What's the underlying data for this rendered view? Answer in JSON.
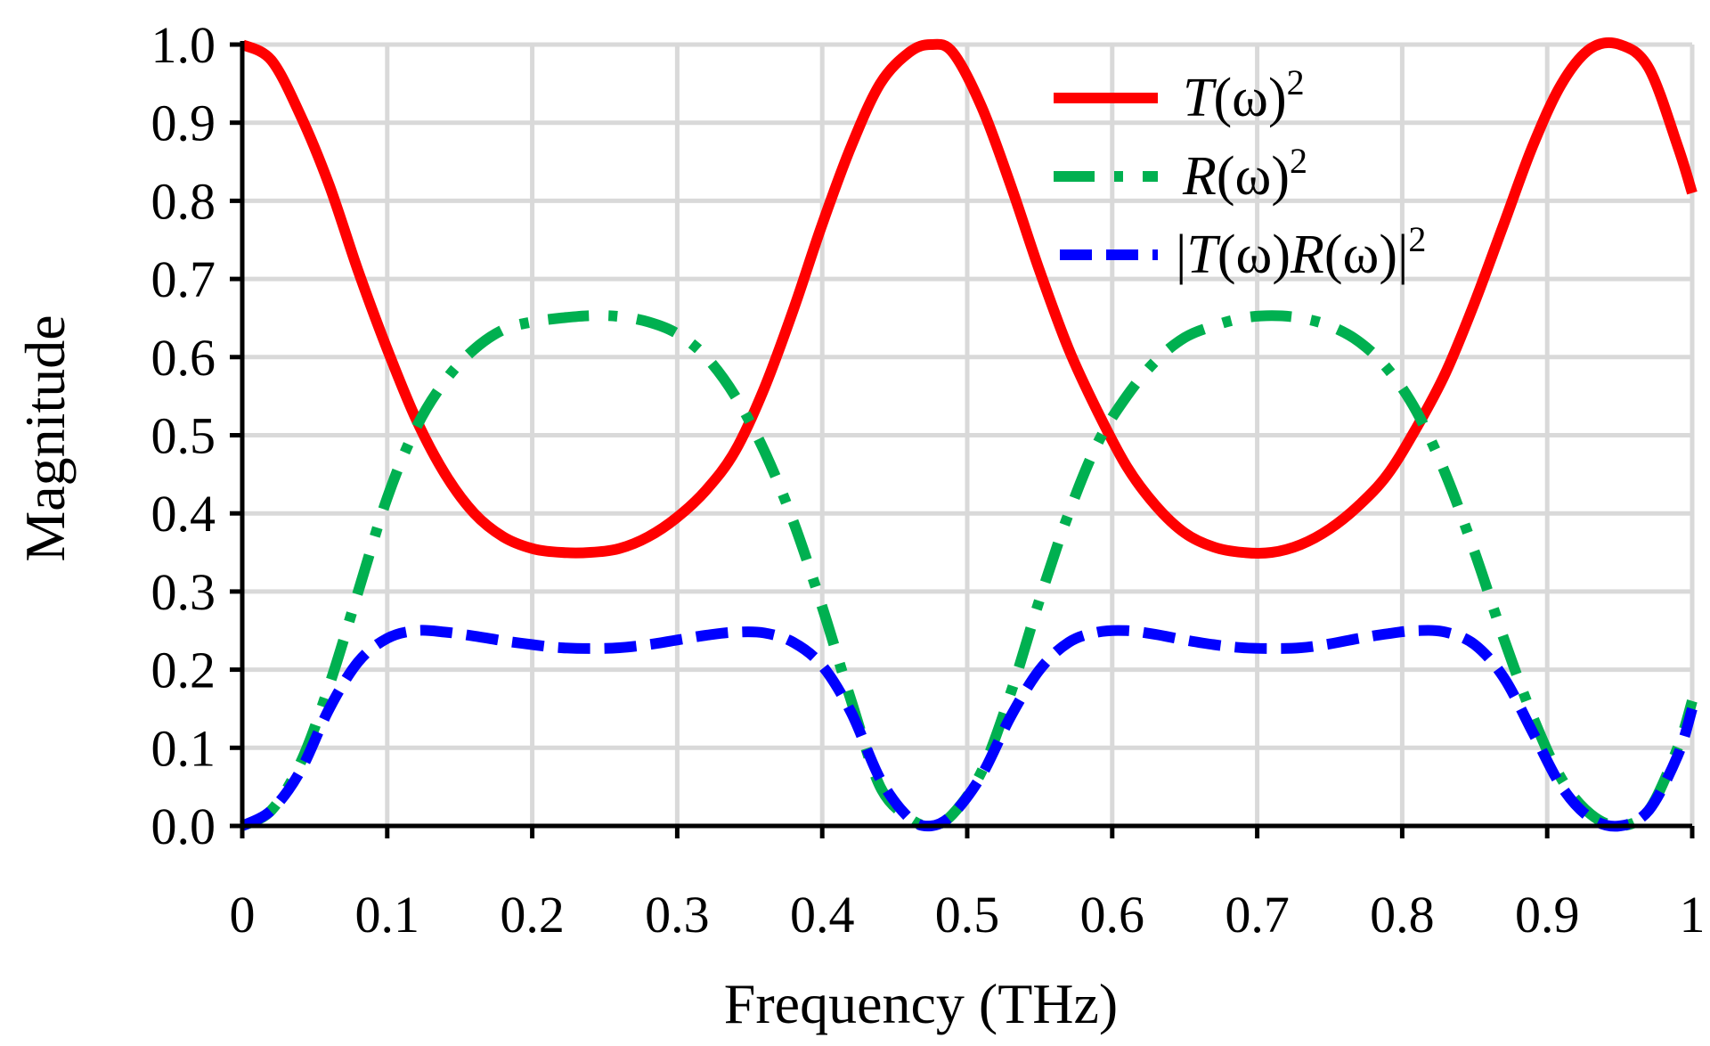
{
  "chart_data": {
    "type": "line",
    "title": "",
    "xlabel": "Frequency (THz)",
    "ylabel": "Magnitude",
    "xlim": [
      0,
      1
    ],
    "ylim": [
      0,
      1
    ],
    "grid": true,
    "legend_position": "top-right",
    "x_ticks": [
      "0",
      "0.1",
      "0.2",
      "0.3",
      "0.4",
      "0.5",
      "0.6",
      "0.7",
      "0.8",
      "0.9",
      "1"
    ],
    "y_ticks": [
      "0.0",
      "0.1",
      "0.2",
      "0.3",
      "0.4",
      "0.5",
      "0.6",
      "0.7",
      "0.8",
      "0.9",
      "1.0"
    ],
    "series": [
      {
        "name": "T(ω)²",
        "legend": {
          "base": "T",
          "arg": "(ω)",
          "sup": "2"
        },
        "color": "#ff0000",
        "style": "solid",
        "x": [
          0,
          0.02,
          0.04,
          0.06,
          0.08,
          0.1,
          0.12,
          0.14,
          0.16,
          0.18,
          0.2,
          0.22,
          0.24,
          0.26,
          0.28,
          0.3,
          0.32,
          0.34,
          0.36,
          0.38,
          0.4,
          0.42,
          0.44,
          0.46,
          0.475,
          0.49,
          0.51,
          0.53,
          0.55,
          0.57,
          0.59,
          0.61,
          0.63,
          0.65,
          0.67,
          0.69,
          0.71,
          0.73,
          0.75,
          0.77,
          0.79,
          0.81,
          0.83,
          0.85,
          0.87,
          0.89,
          0.91,
          0.93,
          0.95,
          0.97,
          0.99,
          1.0
        ],
        "values": [
          1.0,
          0.98,
          0.91,
          0.82,
          0.71,
          0.61,
          0.52,
          0.45,
          0.4,
          0.37,
          0.355,
          0.35,
          0.35,
          0.355,
          0.37,
          0.395,
          0.43,
          0.48,
          0.56,
          0.66,
          0.77,
          0.87,
          0.95,
          0.99,
          1.0,
          0.99,
          0.92,
          0.82,
          0.71,
          0.61,
          0.53,
          0.46,
          0.41,
          0.375,
          0.357,
          0.35,
          0.35,
          0.36,
          0.38,
          0.41,
          0.45,
          0.51,
          0.58,
          0.67,
          0.77,
          0.87,
          0.95,
          0.995,
          1.0,
          0.97,
          0.87,
          0.81
        ]
      },
      {
        "name": "R(ω)²",
        "legend": {
          "base": "R",
          "arg": "(ω)",
          "sup": "2"
        },
        "color": "#00b050",
        "style": "dashdot",
        "x": [
          0,
          0.02,
          0.04,
          0.06,
          0.08,
          0.1,
          0.12,
          0.14,
          0.16,
          0.18,
          0.2,
          0.22,
          0.24,
          0.26,
          0.28,
          0.3,
          0.32,
          0.34,
          0.36,
          0.38,
          0.4,
          0.42,
          0.44,
          0.46,
          0.475,
          0.49,
          0.51,
          0.53,
          0.55,
          0.57,
          0.59,
          0.61,
          0.63,
          0.65,
          0.67,
          0.69,
          0.71,
          0.73,
          0.75,
          0.77,
          0.79,
          0.81,
          0.83,
          0.85,
          0.87,
          0.89,
          0.91,
          0.93,
          0.95,
          0.97,
          0.99,
          1.0
        ],
        "values": [
          0.0,
          0.02,
          0.08,
          0.18,
          0.3,
          0.42,
          0.51,
          0.57,
          0.61,
          0.635,
          0.645,
          0.65,
          0.653,
          0.652,
          0.645,
          0.63,
          0.6,
          0.55,
          0.48,
          0.39,
          0.28,
          0.16,
          0.05,
          0.01,
          0.0,
          0.015,
          0.07,
          0.17,
          0.29,
          0.4,
          0.49,
          0.55,
          0.595,
          0.625,
          0.64,
          0.65,
          0.653,
          0.65,
          0.64,
          0.62,
          0.585,
          0.53,
          0.45,
          0.35,
          0.24,
          0.14,
          0.06,
          0.015,
          0.0,
          0.02,
          0.1,
          0.16
        ]
      },
      {
        "name": "|T(ω)R(ω)|²",
        "legend": {
          "pre": "|",
          "base": "T",
          "arg": "(ω)",
          "base2": "R",
          "arg2": "(ω)|",
          "sup": "2"
        },
        "color": "#0000ff",
        "style": "dashed",
        "x": [
          0,
          0.02,
          0.04,
          0.06,
          0.08,
          0.1,
          0.12,
          0.14,
          0.16,
          0.18,
          0.2,
          0.22,
          0.24,
          0.26,
          0.28,
          0.3,
          0.32,
          0.34,
          0.36,
          0.38,
          0.4,
          0.42,
          0.44,
          0.46,
          0.475,
          0.49,
          0.51,
          0.53,
          0.55,
          0.57,
          0.59,
          0.61,
          0.63,
          0.65,
          0.67,
          0.69,
          0.71,
          0.73,
          0.75,
          0.77,
          0.79,
          0.81,
          0.83,
          0.85,
          0.87,
          0.89,
          0.91,
          0.93,
          0.95,
          0.97,
          0.99,
          1.0
        ],
        "values": [
          0.0,
          0.02,
          0.07,
          0.15,
          0.21,
          0.24,
          0.25,
          0.248,
          0.243,
          0.237,
          0.232,
          0.228,
          0.227,
          0.228,
          0.232,
          0.238,
          0.244,
          0.248,
          0.247,
          0.235,
          0.205,
          0.145,
          0.06,
          0.01,
          0.0,
          0.015,
          0.065,
          0.14,
          0.2,
          0.235,
          0.248,
          0.25,
          0.245,
          0.238,
          0.232,
          0.228,
          0.227,
          0.228,
          0.233,
          0.24,
          0.246,
          0.25,
          0.248,
          0.232,
          0.19,
          0.12,
          0.05,
          0.01,
          0.0,
          0.02,
          0.09,
          0.15
        ]
      }
    ]
  }
}
